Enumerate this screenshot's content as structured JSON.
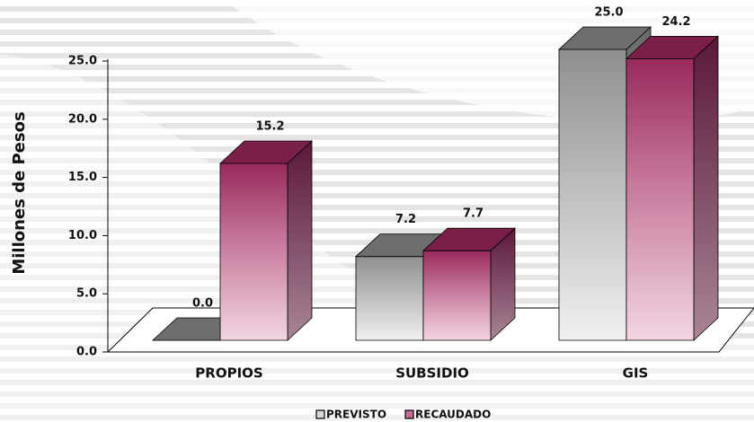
{
  "chart_data": {
    "type": "bar3d",
    "y_label": "Millones de Pesos",
    "categories": [
      "PROPIOS",
      "SUBSIDIO",
      "GIS"
    ],
    "series": [
      {
        "name": "PREVISTO",
        "color": "#a0a0a0",
        "values": [
          0,
          7.2,
          25
        ],
        "value_labels": [
          "0.0",
          "7.2",
          "25.0"
        ]
      },
      {
        "name": "RECAUDADO",
        "color": "#9c2f62",
        "values": [
          15.2,
          7.7,
          24.2
        ],
        "value_labels": [
          "15.2",
          "7.7",
          "24.2"
        ]
      }
    ],
    "ylim": [
      0,
      25
    ],
    "yticks": [
      {
        "value": 0,
        "label": "0.0"
      },
      {
        "value": 5,
        "label": "5.0"
      },
      {
        "value": 10,
        "label": "10.0"
      },
      {
        "value": 15,
        "label": "15.0"
      },
      {
        "value": 20,
        "label": "20.0"
      },
      {
        "value": 25,
        "label": "25.0"
      }
    ]
  }
}
